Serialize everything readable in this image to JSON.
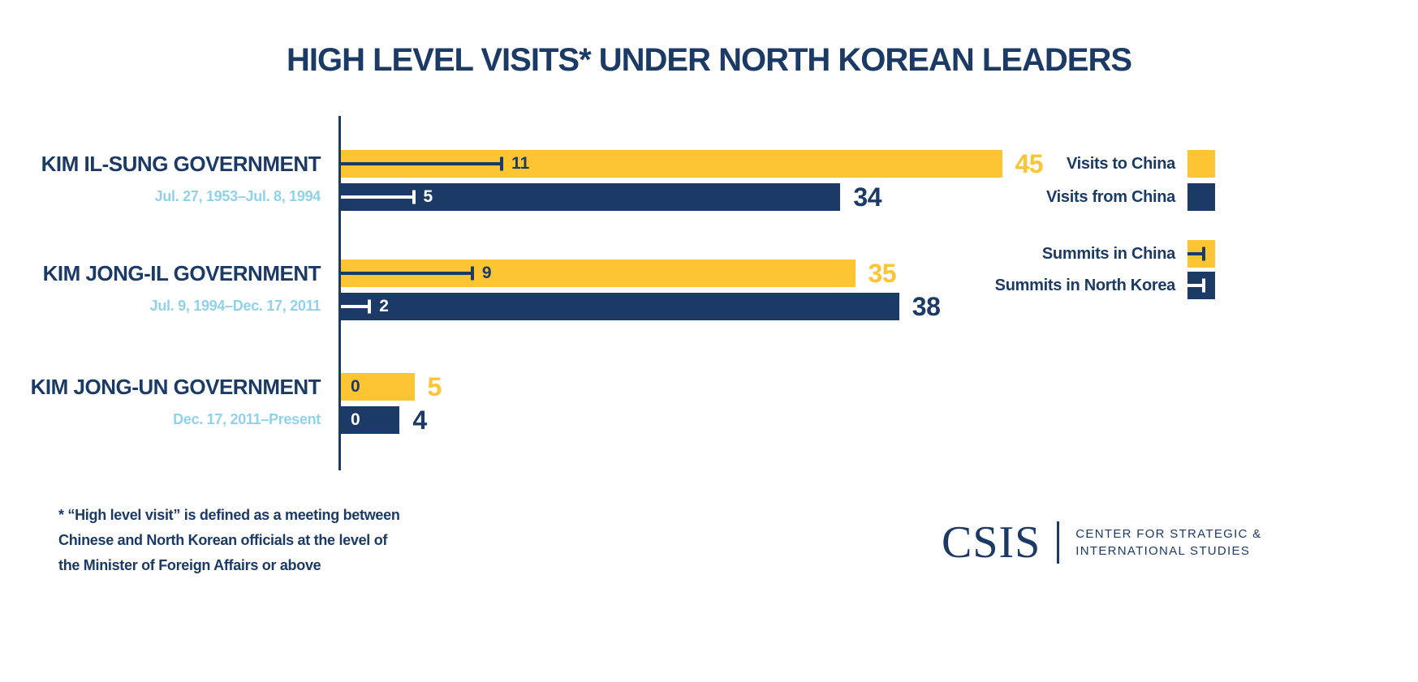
{
  "title": "HIGH LEVEL VISITS* UNDER NORTH KOREAN LEADERS",
  "colors": {
    "navy": "#1B3A66",
    "yellow": "#FDC433",
    "light_blue": "#8FD2EA",
    "white": "#FFFFFF",
    "background": "#FFFFFF"
  },
  "chart_data": {
    "type": "bar",
    "orientation": "horizontal",
    "title": "HIGH LEVEL VISITS* UNDER NORTH KOREAN LEADERS",
    "xlim": [
      0,
      48
    ],
    "grid": false,
    "legend_position": "right",
    "categories": [
      "KIM IL-SUNG GOVERNMENT",
      "KIM JONG-IL GOVERNMENT",
      "KIM JONG-UN GOVERNMENT"
    ],
    "groups": [
      {
        "label": "KIM IL-SUNG GOVERNMENT",
        "dates": "Jul. 27, 1953–Jul. 8, 1994",
        "bars": [
          {
            "series": "Visits to China",
            "value": 45,
            "summit_series": "Summits in China",
            "summit_value": 11
          },
          {
            "series": "Visits from China",
            "value": 34,
            "summit_series": "Summits in North Korea",
            "summit_value": 5
          }
        ]
      },
      {
        "label": "KIM JONG-IL GOVERNMENT",
        "dates": "Jul. 9, 1994–Dec. 17, 2011",
        "bars": [
          {
            "series": "Visits to China",
            "value": 35,
            "summit_series": "Summits in China",
            "summit_value": 9
          },
          {
            "series": "Visits from China",
            "value": 38,
            "summit_series": "Summits in North Korea",
            "summit_value": 2
          }
        ]
      },
      {
        "label": "KIM JONG-UN GOVERNMENT",
        "dates": "Dec. 17, 2011–Present",
        "bars": [
          {
            "series": "Visits to China",
            "value": 5,
            "summit_series": "Summits in China",
            "summit_value": 0
          },
          {
            "series": "Visits from China",
            "value": 4,
            "summit_series": "Summits in North Korea",
            "summit_value": 0
          }
        ]
      }
    ],
    "legend": [
      {
        "label": "Visits to China",
        "color": "#FDC433",
        "marker": "square"
      },
      {
        "label": "Visits from China",
        "color": "#1B3A66",
        "marker": "square"
      },
      {
        "label": "Summits in China",
        "color": "#FDC433",
        "marker": "square-with-whisker",
        "whisker_color": "#1B3A66"
      },
      {
        "label": "Summits in North Korea",
        "color": "#1B3A66",
        "marker": "square-with-whisker",
        "whisker_color": "#FFFFFF"
      }
    ]
  },
  "footnote": {
    "lines": [
      "* “High level visit” is defined as a meeting between",
      "Chinese and North Korean officials at the level of",
      "the Minister of Foreign Affairs or above"
    ]
  },
  "logo": {
    "wordmark": "CSIS",
    "name_line1": "CENTER FOR STRATEGIC &",
    "name_line2": "INTERNATIONAL STUDIES"
  }
}
